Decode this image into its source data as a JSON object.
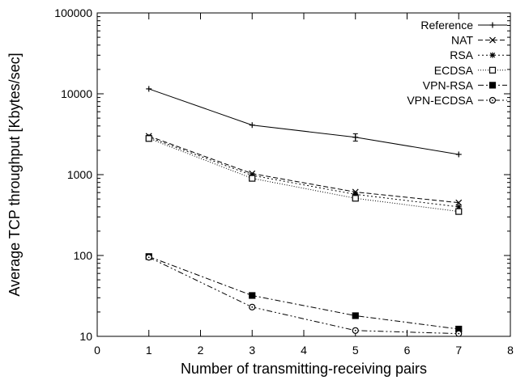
{
  "chart_data": {
    "type": "line",
    "title": "",
    "xlabel": "Number of transmitting-receiving pairs",
    "ylabel": "Average TCP throughput [Kbytes/sec]",
    "xlim": [
      0,
      8
    ],
    "ylim": [
      10,
      100000
    ],
    "yscale": "log",
    "grid": false,
    "legend_position": "top-right",
    "x_ticks": [
      0,
      1,
      2,
      3,
      4,
      5,
      6,
      7,
      8
    ],
    "x_tick_labels": [
      "0",
      "1",
      "2",
      "3",
      "4",
      "5",
      "6",
      "7",
      "8"
    ],
    "y_ticks": [
      10,
      100,
      1000,
      10000,
      100000
    ],
    "y_tick_labels": [
      "10",
      "100",
      "1000",
      "10000",
      "100000"
    ],
    "x": [
      1,
      3,
      5,
      7
    ],
    "series": [
      {
        "name": "Reference",
        "values": [
          11500,
          4100,
          2900,
          1780
        ],
        "marker": "plus",
        "dash": "solid",
        "error_bars": [
          0,
          0,
          300,
          0
        ],
        "color": "#000000"
      },
      {
        "name": "NAT",
        "values": [
          3000,
          1030,
          610,
          450
        ],
        "marker": "cross",
        "dash": "dashed",
        "color": "#000000"
      },
      {
        "name": "RSA",
        "values": [
          2900,
          980,
          570,
          400
        ],
        "marker": "star",
        "dash": "dotted",
        "color": "#000000"
      },
      {
        "name": "ECDSA",
        "values": [
          2800,
          900,
          510,
          350
        ],
        "marker": "open-square",
        "dash": "fine-dotted",
        "color": "#000000"
      },
      {
        "name": "VPN-RSA",
        "values": [
          97,
          32,
          18,
          12.3
        ],
        "marker": "filled-square",
        "dash": "dash-dot",
        "color": "#000000"
      },
      {
        "name": "VPN-ECDSA",
        "values": [
          95,
          23,
          11.8,
          10.8
        ],
        "marker": "open-circle",
        "dash": "dash-dot-dot",
        "color": "#000000"
      }
    ]
  }
}
